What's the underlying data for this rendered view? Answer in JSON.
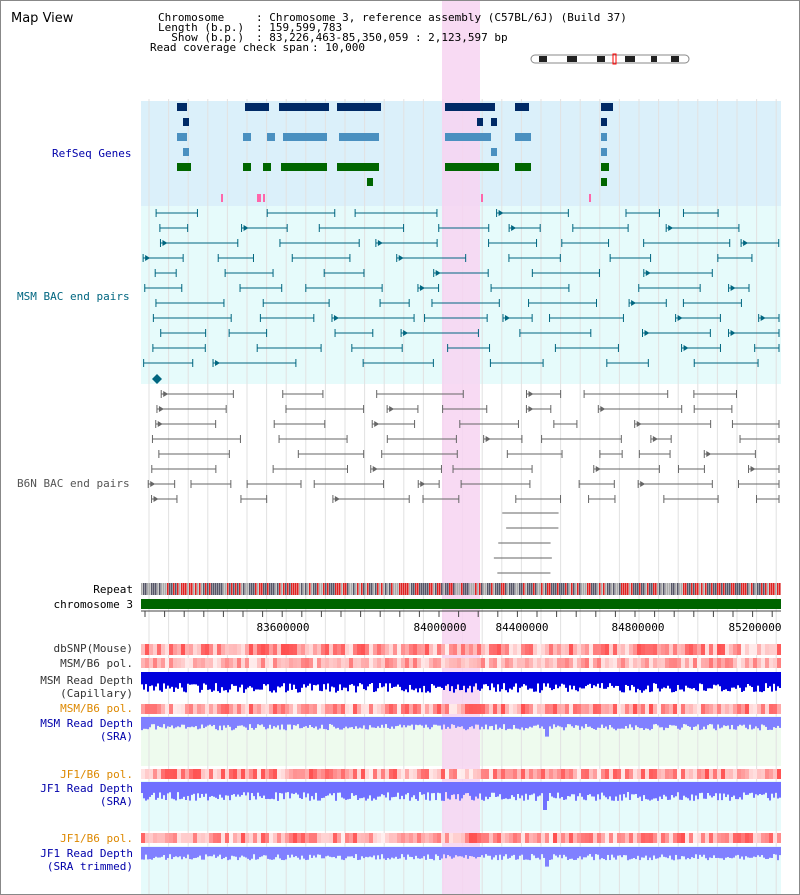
{
  "title": "Map View",
  "info": {
    "chromosome_label": "Chromosome",
    "chromosome_value": ": Chromosome 3, reference assembly (C57BL/6J) (Build 37)",
    "length_label": "Length (b.p.)",
    "length_value": ": 159,599,783",
    "show_label": "  Show (b.p.)",
    "show_value": ": 83,226,463-85,350,059 : 2,123,597 bp",
    "coverage_label": "Read coverage check span",
    "coverage_value": ": 10,000"
  },
  "tracks": {
    "refseq": "RefSeq Genes",
    "msm_bac": "MSM BAC end pairs",
    "b6n_bac": "B6N BAC end pairs",
    "repeat": "Repeat",
    "chromosome": "chromosome 3",
    "dbsnp": "dbSNP(Mouse)",
    "msm_b6_pol": "MSM/B6 pol.",
    "msm_depth_cap_1": "MSM Read Depth",
    "msm_depth_cap_2": "(Capillary)",
    "msm_b6_pol_2": "MSM/B6 pol.",
    "msm_depth_sra_1": "MSM Read Depth",
    "msm_depth_sra_2": "(SRA)",
    "jf1_b6_pol": "JF1/B6 pol.",
    "jf1_depth_sra_1": "JF1 Read Depth",
    "jf1_depth_sra_2": "(SRA)",
    "jf1_b6_pol_2": "JF1/B6 pol.",
    "jf1_depth_trim_1": "JF1 Read Depth",
    "jf1_depth_trim_2": "(SRA trimmed)"
  },
  "axis": {
    "ticks": [
      "83600000",
      "84000000",
      "84400000",
      "84800000",
      "85200000"
    ]
  },
  "colors": {
    "refseq_bg": "#dbf0fa",
    "msm_bg": "#e6fbfb",
    "highlight": "#f7d4f1",
    "chromosome_bar": "#006400",
    "msm_track": "#006680",
    "b6n_track": "#666666",
    "label_blue": "#0000aa",
    "label_orange": "#dd8800"
  }
}
